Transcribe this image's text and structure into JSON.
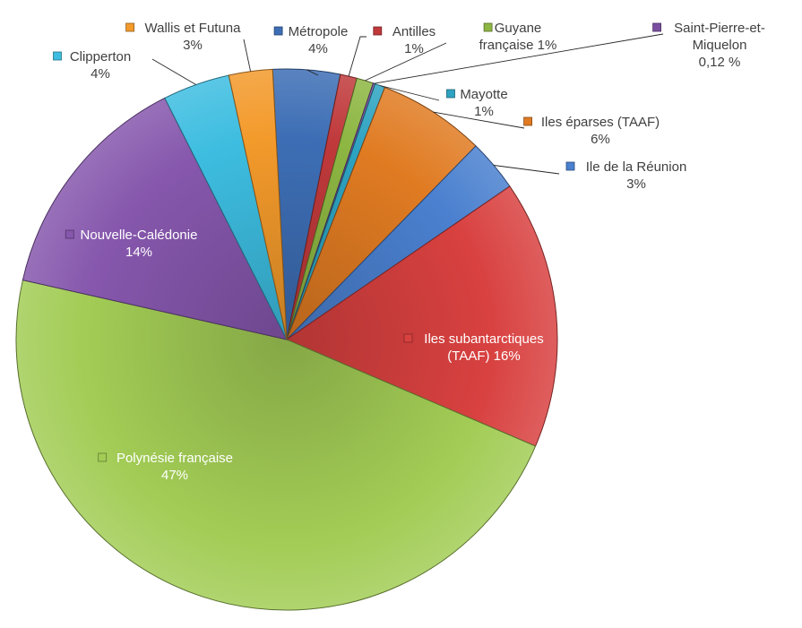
{
  "chart_data": {
    "type": "pie",
    "title": "",
    "slices": [
      {
        "name": "Métropole",
        "value": 4,
        "value_label": "4%",
        "color": "#3d6eb5"
      },
      {
        "name": "Antilles",
        "value": 1,
        "value_label": "1%",
        "color": "#c0393b"
      },
      {
        "name": "Guyane française",
        "value": 1,
        "value_label": "1%",
        "color": "#8db642"
      },
      {
        "name": "Saint-Pierre-et-Miquelon",
        "value": 0.12,
        "value_label": "0,12 %",
        "color": "#7a4fa0"
      },
      {
        "name": "Mayotte",
        "value": 0.6,
        "value_label": "1%",
        "color": "#2ea3c1"
      },
      {
        "name": "Iles éparses (TAAF)",
        "value": 6.4,
        "value_label": "6%",
        "color": "#e07b22"
      },
      {
        "name": "Ile de la Réunion",
        "value": 3.1,
        "value_label": "3%",
        "color": "#4a80cf"
      },
      {
        "name": "Iles subantarctiques (TAAF)",
        "value": 16,
        "value_label": "16%",
        "color": "#d84140"
      },
      {
        "name": "Polynésie française",
        "value": 47,
        "value_label": "47%",
        "color": "#a2cc55"
      },
      {
        "name": "Nouvelle-Calédonie",
        "value": 14,
        "value_label": "14%",
        "color": "#8657ad"
      },
      {
        "name": "Clipperton",
        "value": 4,
        "value_label": "4%",
        "color": "#3dbde0"
      },
      {
        "name": "Wallis et Futuna",
        "value": 2.6,
        "value_label": "3%",
        "color": "#f39a2b"
      }
    ],
    "legend": "none",
    "data_labels": "category name and percentage"
  }
}
